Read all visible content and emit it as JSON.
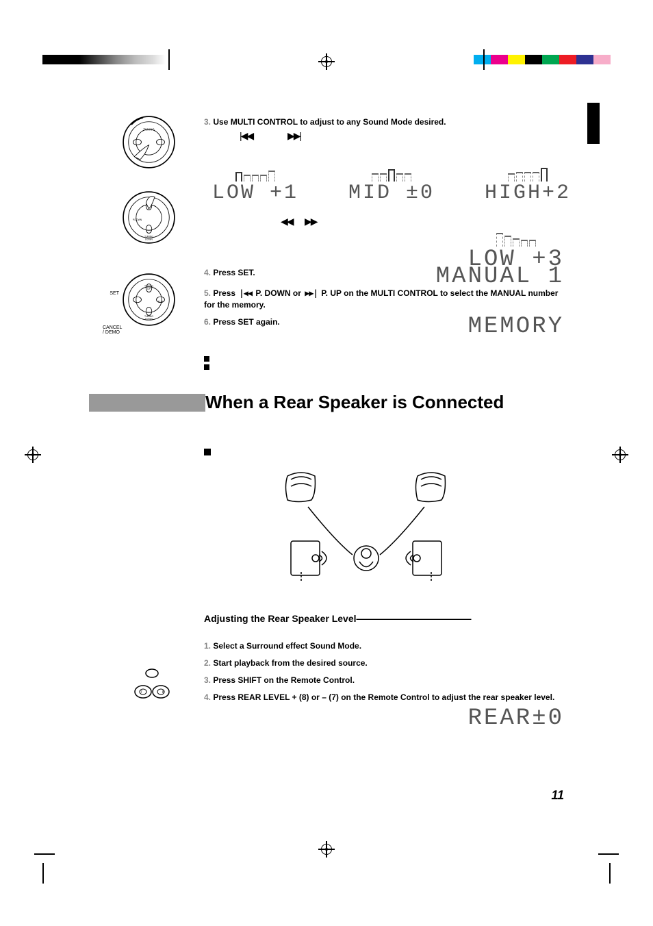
{
  "print_marks": {
    "gray_gradient": [
      "#000000",
      "#333333",
      "#666666",
      "#999999",
      "#bbbbbb",
      "#dddddd",
      "#ffffff"
    ],
    "color_bar": [
      "#00aeef",
      "#ec008c",
      "#fff200",
      "#000000",
      "#00a651",
      "#ed1c24",
      "#2e3192",
      "#f7adc9"
    ]
  },
  "steps_top": {
    "s3": {
      "num": "3.",
      "txt": "Use MULTI CONTROL to adjust to any Sound Mode desired."
    },
    "s4": {
      "num": "4.",
      "txt": "Press SET."
    },
    "s5": {
      "num": "5.",
      "txt": "Press ",
      "mid": " P. DOWN or ",
      "mid2": " P. UP on the MULTI CONTROL to select the MANUAL number for the memory."
    },
    "s6": {
      "num": "6.",
      "txt": "Press SET again."
    }
  },
  "eq": {
    "cells": [
      {
        "bars": [
          14,
          10,
          10,
          10,
          16
        ],
        "label": "LOW  +1",
        "highlight": 0
      },
      {
        "bars": [
          12,
          12,
          18,
          12,
          12
        ],
        "label": "MID  ±0",
        "highlight": 2
      },
      {
        "bars": [
          12,
          14,
          14,
          14,
          20
        ],
        "label": "HIGH+2",
        "highlight": 4
      }
    ],
    "second": {
      "bars": [
        20,
        16,
        12,
        10,
        10
      ],
      "label": "LOW  +3"
    },
    "manual": "MANUAL   1",
    "memory": "MEMORY"
  },
  "section": {
    "title": "When a Rear Speaker is Connected"
  },
  "sub_section": {
    "title": "Adjusting the Rear Speaker Level————————————"
  },
  "steps_bottom": {
    "s1": {
      "num": "1.",
      "txt": "Select a Surround effect Sound Mode."
    },
    "s2": {
      "num": "2.",
      "txt": "Start playback from the desired source."
    },
    "s3": {
      "num": "3.",
      "txt": "Press SHIFT on the Remote Control."
    },
    "s4": {
      "num": "4.",
      "txt": "Press REAR LEVEL + (8) or – (7) on the Remote Control to adjust the rear speaker level."
    }
  },
  "rear_display": "REAR±0",
  "page_number": "11",
  "dial_labels": {
    "set": "SET",
    "cancel": "CANCEL\n/ DEMO",
    "tuning_up": "TUNING\nUP",
    "tuning_down": "TUNING\nDOWN",
    "pup": "MULTI\nP.UP",
    "pdown": "P.DOWN"
  },
  "colors": {
    "text": "#000000",
    "gray": "#888888",
    "seg": "#555555",
    "bar": "#999999"
  }
}
